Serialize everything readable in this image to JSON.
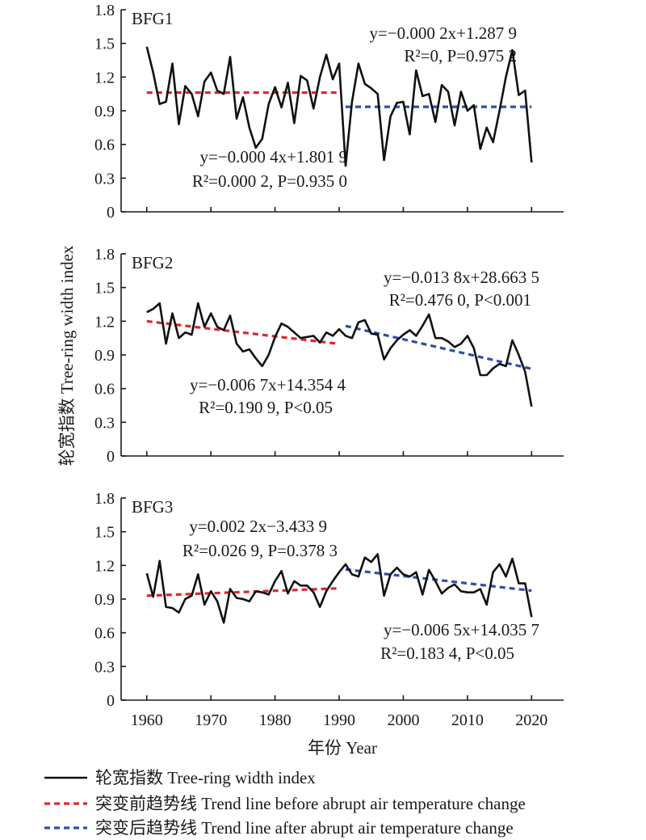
{
  "colors": {
    "series": "#111111",
    "trend_before": "#e0272c",
    "trend_after": "#2f4fa8"
  },
  "y_axis_title": "轮宽指数 Tree-ring width index",
  "x_axis_title": "年份 Year",
  "legend": [
    {
      "key": "series",
      "label": "轮宽指数 Tree-ring width index"
    },
    {
      "key": "trend_before",
      "label": "突变前趋势线 Trend line before abrupt air temperature change"
    },
    {
      "key": "trend_after",
      "label": "突变后趋势线 Trend line after abrupt air temperature change"
    }
  ],
  "chart_data": [
    {
      "type": "line",
      "panel": "BFG1",
      "x_ticks": [
        1960,
        1970,
        1980,
        1990,
        2000,
        2010,
        2020
      ],
      "y_ticks": [
        "0",
        "0.3",
        "0.6",
        "0.9",
        "1.2",
        "1.5",
        "1.8"
      ],
      "xlim": [
        1956,
        2025
      ],
      "ylim": [
        0,
        1.8
      ],
      "series": [
        {
          "key": "tree_ring_width_index",
          "x": [
            1960,
            1961,
            1962,
            1963,
            1964,
            1965,
            1966,
            1967,
            1968,
            1969,
            1970,
            1971,
            1972,
            1973,
            1974,
            1975,
            1976,
            1977,
            1978,
            1979,
            1980,
            1981,
            1982,
            1983,
            1984,
            1985,
            1986,
            1987,
            1988,
            1989,
            1990,
            1991,
            1992,
            1993,
            1994,
            1995,
            1996,
            1997,
            1998,
            1999,
            2000,
            2001,
            2002,
            2003,
            2004,
            2005,
            2006,
            2007,
            2008,
            2009,
            2010,
            2011,
            2012,
            2013,
            2014,
            2015,
            2016,
            2017,
            2018,
            2019,
            2020
          ],
          "values": [
            1.47,
            1.24,
            0.96,
            0.98,
            1.32,
            0.78,
            1.12,
            1.05,
            0.85,
            1.16,
            1.24,
            1.08,
            1.05,
            1.38,
            0.83,
            1.02,
            0.75,
            0.57,
            0.65,
            0.96,
            1.11,
            0.93,
            1.15,
            0.79,
            1.21,
            1.17,
            0.92,
            1.2,
            1.4,
            1.18,
            1.32,
            0.41,
            0.98,
            1.32,
            1.14,
            1.1,
            1.05,
            0.46,
            0.85,
            0.97,
            0.98,
            0.69,
            1.26,
            1.03,
            1.05,
            0.8,
            1.13,
            1.07,
            0.77,
            1.07,
            0.9,
            0.95,
            0.56,
            0.75,
            0.62,
            0.9,
            1.2,
            1.44,
            1.04,
            1.08,
            0.44
          ]
        }
      ],
      "trends": [
        {
          "key": "trend_before",
          "x": [
            1960,
            1990
          ],
          "y": [
            1.062,
            1.062
          ]
        },
        {
          "key": "trend_after",
          "x": [
            1991,
            2020
          ],
          "y": [
            0.935,
            0.935
          ]
        }
      ],
      "annotations": [
        {
          "key": "trend_after",
          "line1": "y=−0.000 2x+1.287 9",
          "line2": "R²=0, P=0.975 2"
        },
        {
          "key": "trend_before",
          "line1": "y=−0.000 4x+1.801 9",
          "line2": "R²=0.000 2, P=0.935 0"
        }
      ]
    },
    {
      "type": "line",
      "panel": "BFG2",
      "x_ticks": [
        1960,
        1970,
        1980,
        1990,
        2000,
        2010,
        2020
      ],
      "y_ticks": [
        "0",
        "0.3",
        "0.6",
        "0.9",
        "1.2",
        "1.5",
        "1.8"
      ],
      "xlim": [
        1956,
        2025
      ],
      "ylim": [
        0,
        1.8
      ],
      "series": [
        {
          "key": "tree_ring_width_index",
          "x": [
            1960,
            1961,
            1962,
            1963,
            1964,
            1965,
            1966,
            1967,
            1968,
            1969,
            1970,
            1971,
            1972,
            1973,
            1974,
            1975,
            1976,
            1977,
            1978,
            1979,
            1980,
            1981,
            1982,
            1983,
            1984,
            1985,
            1986,
            1987,
            1988,
            1989,
            1990,
            1991,
            1992,
            1993,
            1994,
            1995,
            1996,
            1997,
            1998,
            1999,
            2000,
            2001,
            2002,
            2003,
            2004,
            2005,
            2006,
            2007,
            2008,
            2009,
            2010,
            2011,
            2012,
            2013,
            2014,
            2015,
            2016,
            2017,
            2018,
            2019,
            2020
          ],
          "values": [
            1.28,
            1.31,
            1.36,
            1.0,
            1.27,
            1.05,
            1.1,
            1.08,
            1.36,
            1.15,
            1.27,
            1.15,
            1.12,
            1.25,
            1.0,
            0.93,
            0.95,
            0.87,
            0.8,
            0.9,
            1.06,
            1.18,
            1.15,
            1.1,
            1.05,
            1.06,
            1.07,
            1.01,
            1.1,
            1.07,
            1.13,
            1.07,
            1.05,
            1.19,
            1.21,
            1.09,
            1.08,
            0.86,
            0.96,
            1.03,
            1.08,
            1.12,
            1.07,
            1.16,
            1.26,
            1.05,
            1.05,
            1.02,
            0.97,
            1.0,
            1.07,
            0.96,
            0.72,
            0.72,
            0.78,
            0.82,
            0.8,
            1.03,
            0.9,
            0.75,
            0.44
          ]
        }
      ],
      "trends": [
        {
          "key": "trend_before",
          "x": [
            1960,
            1990
          ],
          "y": [
            1.2,
            0.998
          ]
        },
        {
          "key": "trend_after",
          "x": [
            1991,
            2020
          ],
          "y": [
            1.158,
            0.776
          ]
        }
      ],
      "annotations": [
        {
          "key": "trend_after",
          "line1": "y=−0.013 8x+28.663 5",
          "line2": "R²=0.476 0, P<0.001"
        },
        {
          "key": "trend_before",
          "line1": "y=−0.006 7x+14.354 4",
          "line2": "R²=0.190 9, P<0.05"
        }
      ]
    },
    {
      "type": "line",
      "panel": "BFG3",
      "x_ticks": [
        1960,
        1970,
        1980,
        1990,
        2000,
        2010,
        2020
      ],
      "y_ticks": [
        "0",
        "0.3",
        "0.6",
        "0.9",
        "1.2",
        "1.5",
        "1.8"
      ],
      "xlim": [
        1956,
        2025
      ],
      "ylim": [
        0,
        1.8
      ],
      "series": [
        {
          "key": "tree_ring_width_index",
          "x": [
            1960,
            1961,
            1962,
            1963,
            1964,
            1965,
            1966,
            1967,
            1968,
            1969,
            1970,
            1971,
            1972,
            1973,
            1974,
            1975,
            1976,
            1977,
            1978,
            1979,
            1980,
            1981,
            1982,
            1983,
            1984,
            1985,
            1986,
            1987,
            1988,
            1989,
            1990,
            1991,
            1992,
            1993,
            1994,
            1995,
            1996,
            1997,
            1998,
            1999,
            2000,
            2001,
            2002,
            2003,
            2004,
            2005,
            2006,
            2007,
            2008,
            2009,
            2010,
            2011,
            2012,
            2013,
            2014,
            2015,
            2016,
            2017,
            2018,
            2019,
            2020
          ],
          "values": [
            1.13,
            0.92,
            1.24,
            0.83,
            0.82,
            0.78,
            0.9,
            0.93,
            1.12,
            0.85,
            0.97,
            0.88,
            0.69,
            0.99,
            0.91,
            0.9,
            0.88,
            0.97,
            0.96,
            0.94,
            1.06,
            1.15,
            0.95,
            1.06,
            1.02,
            1.02,
            0.96,
            0.83,
            0.97,
            1.06,
            1.14,
            1.21,
            1.12,
            1.1,
            1.27,
            1.23,
            1.3,
            0.93,
            1.12,
            1.18,
            1.12,
            1.1,
            1.14,
            0.94,
            1.16,
            1.06,
            0.95,
            1.0,
            1.03,
            0.97,
            0.96,
            0.96,
            0.99,
            0.85,
            1.14,
            1.21,
            1.1,
            1.26,
            1.04,
            1.04,
            0.74
          ]
        }
      ],
      "trends": [
        {
          "key": "trend_before",
          "x": [
            1960,
            1990
          ],
          "y": [
            0.93,
            0.996
          ]
        },
        {
          "key": "trend_after",
          "x": [
            1991,
            2020
          ],
          "y": [
            1.164,
            0.975
          ]
        }
      ],
      "annotations": [
        {
          "key": "trend_before",
          "line1": "y=0.002 2x−3.433 9",
          "line2": "R²=0.026 9, P=0.378 3"
        },
        {
          "key": "trend_after",
          "line1": "y=−0.006 5x+14.035 7",
          "line2": "R²=0.183 4, P<0.05"
        }
      ]
    }
  ]
}
